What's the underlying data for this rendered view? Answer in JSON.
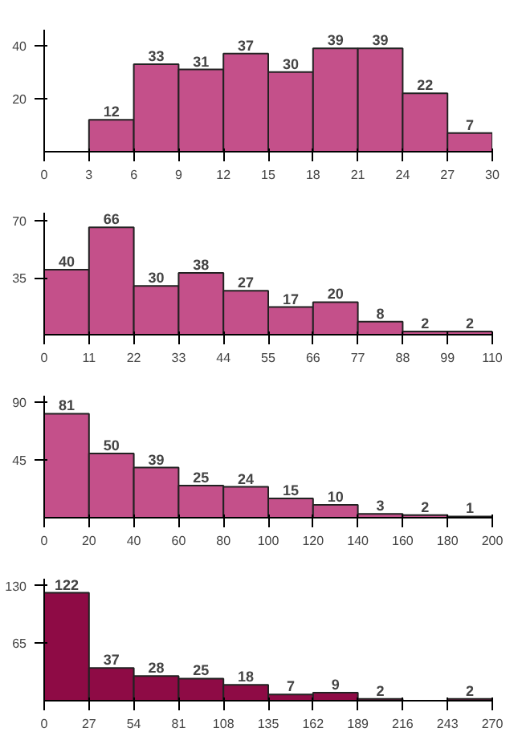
{
  "chart_data": [
    {
      "type": "histogram",
      "bins": [
        0,
        3,
        6,
        9,
        12,
        15,
        18,
        21,
        24,
        27,
        30
      ],
      "values": [
        0,
        12,
        33,
        31,
        37,
        30,
        39,
        39,
        22,
        7
      ],
      "value_labels": [
        null,
        "12",
        "33",
        "31",
        "37",
        "30",
        "39",
        "39",
        "22",
        "7"
      ],
      "color": "#c4508a",
      "xlim": [
        0,
        30
      ],
      "xticks": [
        0,
        3,
        6,
        9,
        12,
        15,
        18,
        21,
        24,
        27,
        30
      ],
      "ylim": [
        0,
        46
      ],
      "yticks": [
        20,
        40
      ]
    },
    {
      "type": "histogram",
      "bins": [
        0,
        11,
        22,
        33,
        44,
        55,
        66,
        77,
        88,
        99,
        110
      ],
      "values": [
        40,
        66,
        30,
        38,
        27,
        17,
        20,
        8,
        2,
        2
      ],
      "data_labels": true,
      "color": "#c4508a",
      "xlim": [
        0,
        110
      ],
      "xticks": [
        0,
        11,
        22,
        33,
        44,
        55,
        66,
        77,
        88,
        99,
        110
      ],
      "ylim": [
        0,
        75
      ],
      "yticks": [
        35,
        70
      ]
    },
    {
      "type": "histogram",
      "bins": [
        0,
        20,
        40,
        60,
        80,
        100,
        120,
        140,
        160,
        180,
        200
      ],
      "values": [
        81,
        50,
        39,
        25,
        24,
        15,
        10,
        3,
        2,
        1
      ],
      "data_labels": true,
      "color": "#c4508a",
      "xlim": [
        0,
        200
      ],
      "xticks": [
        0,
        20,
        40,
        60,
        80,
        100,
        120,
        140,
        160,
        180,
        200
      ],
      "ylim": [
        0,
        95
      ],
      "yticks": [
        45,
        90
      ]
    },
    {
      "type": "histogram",
      "bins": [
        0,
        27,
        54,
        81,
        108,
        135,
        162,
        189,
        216,
        243,
        270
      ],
      "values": [
        122,
        37,
        28,
        25,
        18,
        7,
        9,
        2,
        0,
        2
      ],
      "value_labels": [
        "122",
        "37",
        "28",
        "25",
        "18",
        "7",
        "9",
        "2",
        null,
        "2"
      ],
      "color": "#8e0b45",
      "xlim": [
        0,
        270
      ],
      "xticks": [
        0,
        27,
        54,
        81,
        108,
        135,
        162,
        189,
        216,
        243,
        270
      ],
      "ylim": [
        0,
        138
      ],
      "yticks": [
        65,
        130
      ]
    }
  ]
}
